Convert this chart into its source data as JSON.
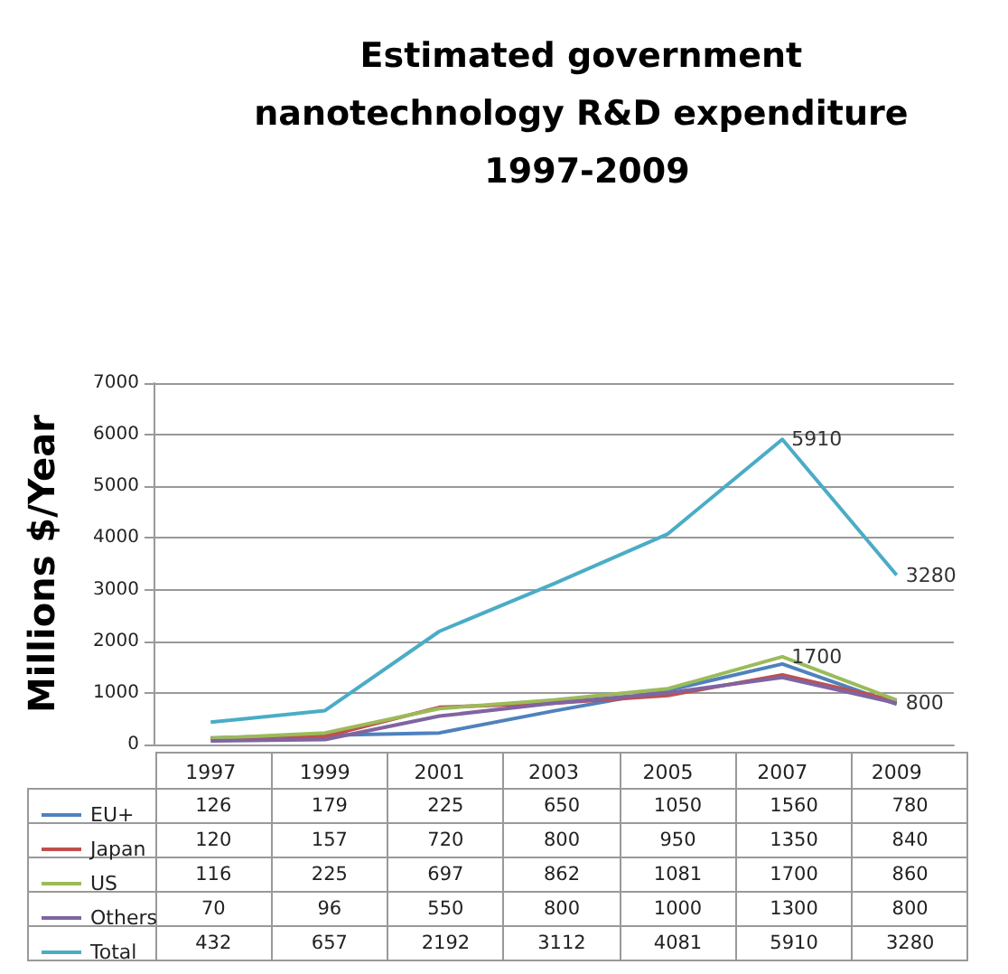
{
  "chart_data": {
    "type": "line",
    "title": "Estimated government nanotechnology R&D expenditure 1997-2009",
    "ylabel": "Millions $/Year",
    "categories": [
      "1997",
      "1999",
      "2001",
      "2003",
      "2005",
      "2007",
      "2009"
    ],
    "series": [
      {
        "name": "EU+",
        "color": "#4f81bd",
        "values": [
          126,
          179,
          225,
          650,
          1050,
          1560,
          780
        ]
      },
      {
        "name": "Japan",
        "color": "#c0504d",
        "values": [
          120,
          157,
          720,
          800,
          950,
          1350,
          840
        ]
      },
      {
        "name": "US",
        "color": "#9bbb59",
        "values": [
          116,
          225,
          697,
          862,
          1081,
          1700,
          860
        ]
      },
      {
        "name": "Others",
        "color": "#8064a2",
        "values": [
          70,
          96,
          550,
          800,
          1000,
          1300,
          800
        ]
      },
      {
        "name": "Total",
        "color": "#4bacc6",
        "values": [
          432,
          657,
          2192,
          3112,
          4081,
          5910,
          3280
        ]
      }
    ],
    "annotations": [
      {
        "text": "5910",
        "x": "2007",
        "y": 5910
      },
      {
        "text": "3280",
        "x": "2009",
        "y": 3280
      },
      {
        "text": "1700",
        "x": "2007",
        "y": 1700
      },
      {
        "text": "800",
        "x": "2009",
        "y": 800
      }
    ],
    "ylim": [
      0,
      7000
    ],
    "yticks": [
      0,
      1000,
      2000,
      3000,
      4000,
      5000,
      6000,
      7000
    ],
    "grid": "y",
    "legend": "bottom left",
    "data_labels": true
  }
}
